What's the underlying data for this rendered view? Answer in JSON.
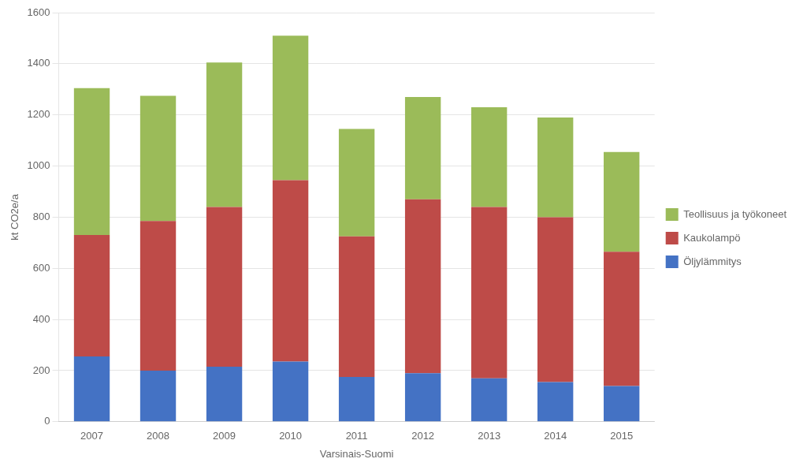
{
  "chart_data": {
    "type": "bar",
    "stacked": true,
    "categories": [
      "2007",
      "2008",
      "2009",
      "2010",
      "2011",
      "2012",
      "2013",
      "2014",
      "2015"
    ],
    "series": [
      {
        "name": "Öljylämmitys",
        "color": "#4472C4",
        "values": [
          255,
          200,
          215,
          235,
          175,
          190,
          170,
          155,
          140
        ]
      },
      {
        "name": "Kaukolampö",
        "color": "#BE4B48",
        "values": [
          475,
          585,
          625,
          710,
          550,
          680,
          670,
          645,
          525
        ]
      },
      {
        "name": "Teollisuus ja työkoneet",
        "color": "#9BBB59",
        "values": [
          575,
          490,
          565,
          565,
          420,
          400,
          390,
          390,
          390
        ]
      }
    ],
    "x_label": "Varsinais-Suomi",
    "y_label": "kt CO2e/a",
    "ylim": [
      0,
      1600
    ],
    "yticks": [
      0,
      200,
      400,
      600,
      800,
      1000,
      1200,
      1400,
      1600
    ],
    "grid": true,
    "legend": "right"
  }
}
